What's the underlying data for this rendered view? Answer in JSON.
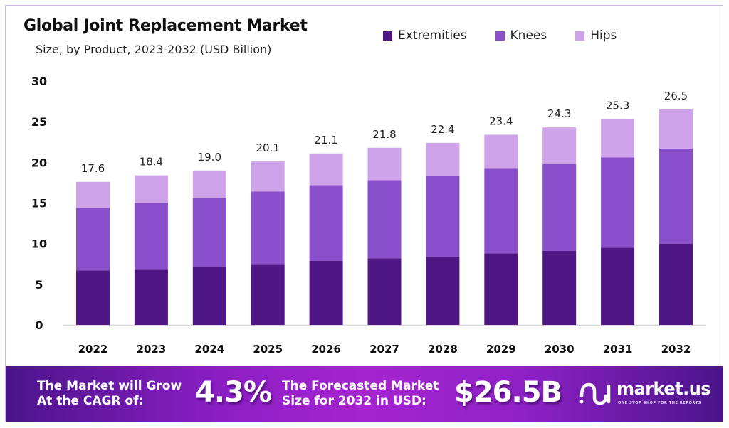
{
  "header": {
    "title": "Global Joint Replacement Market",
    "subtitle": "Size, by Product, 2023-2032 (USD Billion)"
  },
  "colors": {
    "extremities": "#4f1685",
    "knees": "#8a4fcb",
    "hips": "#cfa3ea",
    "banner_start": "#4a1489",
    "banner_mid": "#a524d0"
  },
  "chart_data": {
    "type": "bar",
    "stacked": true,
    "title": "Global Joint Replacement Market",
    "subtitle": "Size, by Product, 2023-2032 (USD Billion)",
    "xlabel": "",
    "ylabel": "",
    "ylim": [
      0,
      30
    ],
    "yticks": [
      "0",
      "5",
      "10",
      "15",
      "20",
      "25",
      "30"
    ],
    "grid": false,
    "legend_position": "top-right",
    "categories": [
      "2022",
      "2023",
      "2024",
      "2025",
      "2026",
      "2027",
      "2028",
      "2029",
      "2030",
      "2031",
      "2032"
    ],
    "series": [
      {
        "name": "Extremities",
        "values": [
          6.7,
          6.8,
          7.1,
          7.4,
          7.9,
          8.2,
          8.4,
          8.8,
          9.1,
          9.5,
          10.0
        ]
      },
      {
        "name": "Knees",
        "values": [
          7.7,
          8.2,
          8.5,
          9.0,
          9.3,
          9.6,
          9.9,
          10.4,
          10.7,
          11.1,
          11.7
        ]
      },
      {
        "name": "Hips",
        "values": [
          3.2,
          3.4,
          3.4,
          3.7,
          3.9,
          4.0,
          4.1,
          4.2,
          4.5,
          4.7,
          4.8
        ]
      }
    ],
    "totals": [
      17.6,
      18.4,
      19.0,
      20.1,
      21.1,
      21.8,
      22.4,
      23.4,
      24.3,
      25.3,
      26.5
    ],
    "total_labels": [
      "17.6",
      "18.4",
      "19.0",
      "20.1",
      "21.1",
      "21.8",
      "22.4",
      "23.4",
      "24.3",
      "25.3",
      "26.5"
    ]
  },
  "legend": [
    {
      "label": "Extremities",
      "key": "extremities"
    },
    {
      "label": "Knees",
      "key": "knees"
    },
    {
      "label": "Hips",
      "key": "hips"
    }
  ],
  "banner": {
    "cagr_text_line1": "The Market will Grow",
    "cagr_text_line2": "At the CAGR of:",
    "cagr_value": "4.3%",
    "forecast_text_line1": "The Forecasted Market",
    "forecast_text_line2": "Size for 2032 in USD:",
    "forecast_value": "$26.5B",
    "logo_name": "market.us",
    "logo_tagline": "ONE STOP SHOP FOR THE REPORTS"
  }
}
